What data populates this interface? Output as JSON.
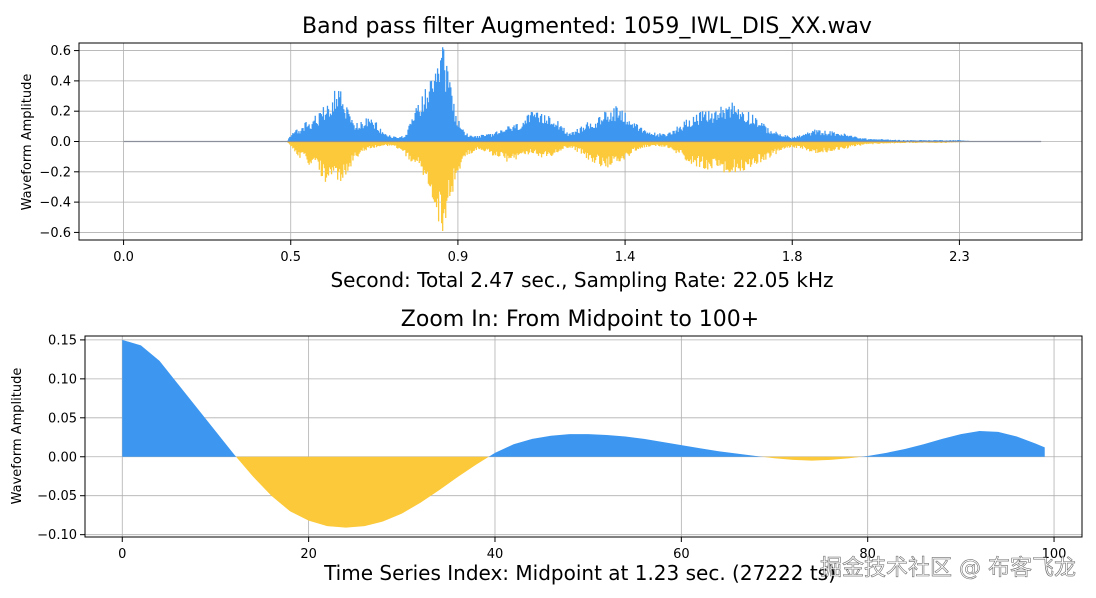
{
  "colors": {
    "positive": "#3d97f0",
    "negative": "#fbc93a",
    "grid": "#b0b0b0",
    "axis": "#000000"
  },
  "watermark": "掘金技术社区 @ 布客飞龙",
  "chart_data": [
    {
      "type": "area",
      "title": "Band pass filter Augmented: 1059_IWL_DIS_XX.wav",
      "xlabel": "Second: Total 2.47 sec., Sampling Rate: 22.05 kHz",
      "ylabel": "Waveform Amplitude",
      "xlim": [
        -0.12,
        2.58
      ],
      "ylim": [
        -0.65,
        0.65
      ],
      "xticks": [
        0.0,
        0.45,
        0.9,
        1.35,
        1.8,
        2.25
      ],
      "xtick_labels": [
        "0.0",
        "0.5",
        "0.9",
        "1.4",
        "1.8",
        "2.3"
      ],
      "yticks": [
        0.6,
        0.4,
        0.2,
        0.0,
        -0.2,
        -0.4,
        -0.6
      ],
      "ytick_labels": [
        "0.6",
        "0.4",
        "0.2",
        "0.0",
        "−0.2",
        "−0.4",
        "−0.6"
      ],
      "grid": true,
      "duration": 2.47,
      "envelope": {
        "x": [
          0.0,
          0.44,
          0.45,
          0.47,
          0.5,
          0.53,
          0.55,
          0.58,
          0.6,
          0.62,
          0.64,
          0.66,
          0.68,
          0.7,
          0.72,
          0.74,
          0.76,
          0.78,
          0.8,
          0.82,
          0.84,
          0.86,
          0.88,
          0.9,
          0.92,
          0.95,
          0.98,
          1.0,
          1.03,
          1.06,
          1.08,
          1.1,
          1.13,
          1.15,
          1.18,
          1.2,
          1.23,
          1.25,
          1.28,
          1.3,
          1.33,
          1.36,
          1.38,
          1.4,
          1.43,
          1.46,
          1.5,
          1.53,
          1.56,
          1.6,
          1.63,
          1.66,
          1.7,
          1.73,
          1.76,
          1.8,
          1.83,
          1.86,
          1.9,
          1.93,
          1.96,
          2.0,
          2.05,
          2.1,
          2.15,
          2.2,
          2.25,
          2.3,
          2.35,
          2.4,
          2.47
        ],
        "pos": [
          0.0,
          0.0,
          0.05,
          0.08,
          0.14,
          0.2,
          0.28,
          0.38,
          0.25,
          0.12,
          0.14,
          0.16,
          0.13,
          0.06,
          0.04,
          0.03,
          0.05,
          0.18,
          0.3,
          0.38,
          0.45,
          0.6,
          0.35,
          0.15,
          0.06,
          0.04,
          0.05,
          0.06,
          0.1,
          0.12,
          0.16,
          0.2,
          0.18,
          0.2,
          0.12,
          0.05,
          0.1,
          0.13,
          0.16,
          0.22,
          0.25,
          0.18,
          0.12,
          0.08,
          0.06,
          0.05,
          0.12,
          0.18,
          0.2,
          0.22,
          0.28,
          0.24,
          0.18,
          0.1,
          0.06,
          0.03,
          0.05,
          0.08,
          0.07,
          0.06,
          0.04,
          0.02,
          0.015,
          0.01,
          0.01,
          0.01,
          0.01,
          0.0,
          0.0,
          0.0,
          0.0
        ],
        "neg": [
          0.0,
          0.0,
          -0.04,
          -0.1,
          -0.16,
          -0.22,
          -0.3,
          -0.28,
          -0.24,
          -0.14,
          -0.08,
          -0.05,
          -0.04,
          -0.03,
          -0.03,
          -0.05,
          -0.1,
          -0.15,
          -0.2,
          -0.3,
          -0.48,
          -0.6,
          -0.4,
          -0.22,
          -0.1,
          -0.06,
          -0.08,
          -0.1,
          -0.14,
          -0.12,
          -0.1,
          -0.08,
          -0.12,
          -0.1,
          -0.06,
          -0.04,
          -0.08,
          -0.12,
          -0.16,
          -0.18,
          -0.16,
          -0.1,
          -0.06,
          -0.04,
          -0.03,
          -0.04,
          -0.1,
          -0.16,
          -0.18,
          -0.2,
          -0.22,
          -0.2,
          -0.16,
          -0.12,
          -0.08,
          -0.04,
          -0.05,
          -0.08,
          -0.07,
          -0.06,
          -0.04,
          -0.02,
          -0.015,
          -0.01,
          -0.01,
          -0.01,
          -0.005,
          0.0,
          0.0,
          0.0,
          0.0
        ]
      },
      "spikes": [
        0.465,
        0.49,
        0.86,
        0.87,
        0.88
      ]
    },
    {
      "type": "area",
      "title": "Zoom In: From Midpoint to 100+",
      "xlabel": "Time Series Index: Midpoint at 1.23 sec. (27222 ts)",
      "ylabel": "Waveform Amplitude",
      "xlim": [
        -4,
        103
      ],
      "ylim": [
        -0.103,
        0.155
      ],
      "xticks": [
        0,
        20,
        40,
        60,
        80,
        100
      ],
      "xtick_labels": [
        "0",
        "20",
        "40",
        "60",
        "80",
        "100"
      ],
      "yticks": [
        0.15,
        0.1,
        0.05,
        0.0,
        -0.05,
        -0.1
      ],
      "ytick_labels": [
        "0.15",
        "0.10",
        "0.05",
        "0.00",
        "−0.05",
        "−0.10"
      ],
      "grid": true,
      "x": [
        0,
        2,
        4,
        6,
        8,
        10,
        12,
        14,
        16,
        18,
        20,
        22,
        24,
        26,
        28,
        30,
        32,
        34,
        36,
        38,
        40,
        42,
        44,
        46,
        48,
        50,
        52,
        54,
        56,
        58,
        60,
        62,
        64,
        66,
        68,
        70,
        72,
        74,
        76,
        78,
        80,
        82,
        84,
        86,
        88,
        90,
        92,
        94,
        96,
        98,
        99
      ],
      "values": [
        0.15,
        0.143,
        0.123,
        0.093,
        0.063,
        0.033,
        0.003,
        -0.025,
        -0.05,
        -0.07,
        -0.082,
        -0.089,
        -0.091,
        -0.089,
        -0.083,
        -0.073,
        -0.059,
        -0.043,
        -0.026,
        -0.01,
        0.005,
        0.016,
        0.023,
        0.027,
        0.029,
        0.029,
        0.028,
        0.026,
        0.023,
        0.019,
        0.015,
        0.011,
        0.007,
        0.004,
        0.001,
        -0.002,
        -0.004,
        -0.005,
        -0.004,
        -0.002,
        0.001,
        0.005,
        0.01,
        0.016,
        0.023,
        0.029,
        0.033,
        0.032,
        0.026,
        0.017,
        0.012
      ]
    }
  ]
}
